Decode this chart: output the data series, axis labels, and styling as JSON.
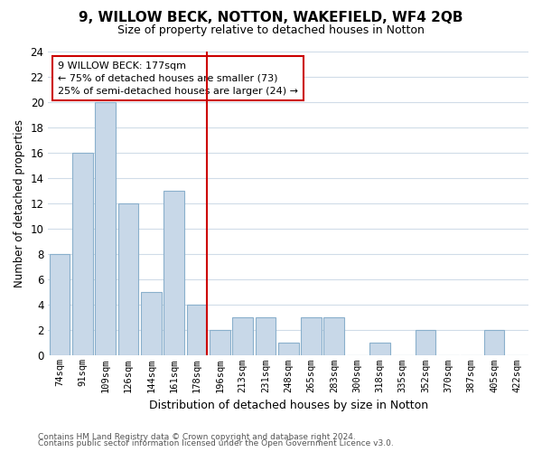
{
  "title": "9, WILLOW BECK, NOTTON, WAKEFIELD, WF4 2QB",
  "subtitle": "Size of property relative to detached houses in Notton",
  "xlabel": "Distribution of detached houses by size in Notton",
  "ylabel": "Number of detached properties",
  "bar_labels": [
    "74sqm",
    "91sqm",
    "109sqm",
    "126sqm",
    "144sqm",
    "161sqm",
    "178sqm",
    "196sqm",
    "213sqm",
    "231sqm",
    "248sqm",
    "265sqm",
    "283sqm",
    "300sqm",
    "318sqm",
    "335sqm",
    "352sqm",
    "370sqm",
    "387sqm",
    "405sqm",
    "422sqm"
  ],
  "bar_values": [
    8,
    16,
    20,
    12,
    5,
    13,
    4,
    2,
    3,
    3,
    1,
    3,
    3,
    0,
    1,
    0,
    2,
    0,
    0,
    2,
    0
  ],
  "bar_color": "#c8d8e8",
  "bar_edge_color": "#8ab0cc",
  "highlight_line_color": "#cc0000",
  "annotation_title": "9 WILLOW BECK: 177sqm",
  "annotation_line1": "← 75% of detached houses are smaller (73)",
  "annotation_line2": "25% of semi-detached houses are larger (24) →",
  "annotation_box_edge": "#cc0000",
  "ylim": [
    0,
    24
  ],
  "yticks": [
    0,
    2,
    4,
    6,
    8,
    10,
    12,
    14,
    16,
    18,
    20,
    22,
    24
  ],
  "footer1": "Contains HM Land Registry data © Crown copyright and database right 2024.",
  "footer2": "Contains public sector information licensed under the Open Government Licence v3.0.",
  "bg_color": "#ffffff",
  "grid_color": "#d0dce8"
}
